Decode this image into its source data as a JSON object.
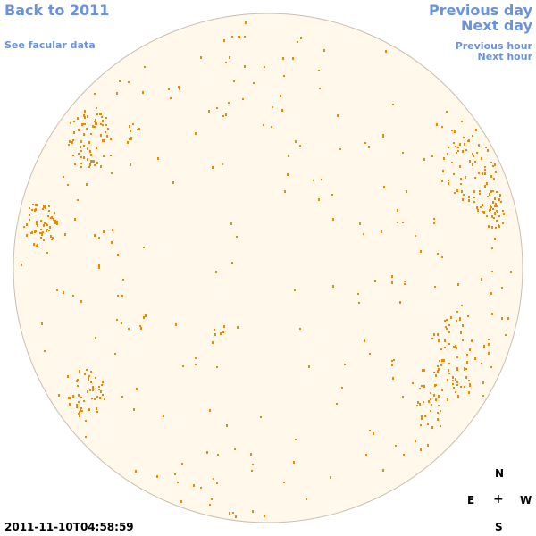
{
  "nav": {
    "back_label": "Back to 2011",
    "facular_label": "See facular data",
    "prev_day_label": "Previous day",
    "next_day_label": "Next day",
    "prev_hour_label": "Previous hour",
    "next_hour_label": "Next hour"
  },
  "compass": {
    "north": "N",
    "east": "E",
    "center": "+",
    "west": "W",
    "south": "S"
  },
  "timestamp": "2011-11-10T04:58:59",
  "colors": {
    "link": "#6a93dd",
    "disk_fill": "#fff8eb",
    "disk_edge": "#c9bfae",
    "feature": "#ef8a00"
  },
  "icons": {
    "compass_center": "crosshair-plus-icon"
  }
}
